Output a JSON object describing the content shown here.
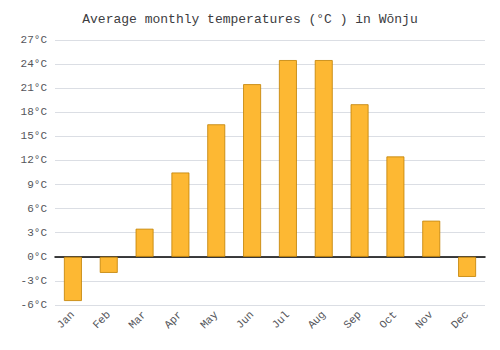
{
  "chart_data": {
    "type": "bar",
    "title": "Average monthly temperatures (°C ) in Wōnju",
    "categories": [
      "Jan",
      "Feb",
      "Mar",
      "Apr",
      "May",
      "Jun",
      "Jul",
      "Aug",
      "Sep",
      "Oct",
      "Nov",
      "Dec"
    ],
    "values": [
      -5.5,
      -2.0,
      3.5,
      10.5,
      16.5,
      21.5,
      24.5,
      24.5,
      19.0,
      12.5,
      4.5,
      -2.5
    ],
    "color": "#FDB833",
    "ylim": [
      -6,
      27
    ],
    "yticks": [
      {
        "value": -6,
        "label": "-6°C"
      },
      {
        "value": -3,
        "label": "-3°C"
      },
      {
        "value": 0,
        "label": "0°C"
      },
      {
        "value": 3,
        "label": "3°C"
      },
      {
        "value": 6,
        "label": "6°C"
      },
      {
        "value": 9,
        "label": "9°C"
      },
      {
        "value": 12,
        "label": "12°C"
      },
      {
        "value": 15,
        "label": "15°C"
      },
      {
        "value": 18,
        "label": "18°C"
      },
      {
        "value": 21,
        "label": "21°C"
      },
      {
        "value": 24,
        "label": "24°C"
      },
      {
        "value": 27,
        "label": "27°C"
      }
    ],
    "grid": true
  }
}
